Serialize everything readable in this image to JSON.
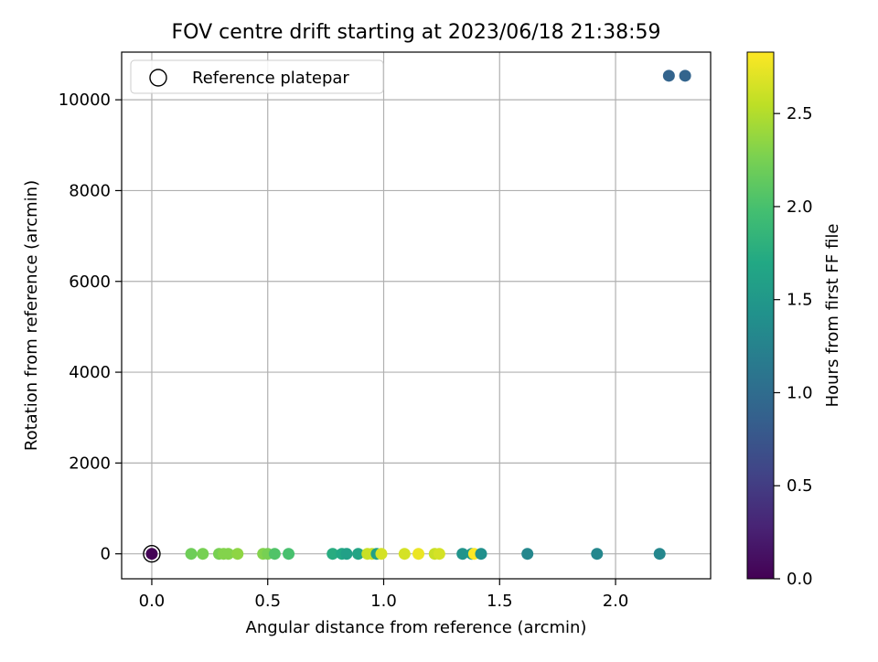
{
  "chart_data": {
    "type": "scatter",
    "title": "FOV centre drift starting at 2023/06/18 21:38:59",
    "xlabel": "Angular distance from reference (arcmin)",
    "ylabel": "Rotation from reference (arcmin)",
    "xlim": [
      -0.13,
      2.41
    ],
    "ylim": [
      -550,
      11050
    ],
    "xticks": [
      0.0,
      0.5,
      1.0,
      1.5,
      2.0
    ],
    "xtick_labels": [
      "0.0",
      "0.5",
      "1.0",
      "1.5",
      "2.0"
    ],
    "yticks": [
      0,
      2000,
      4000,
      6000,
      8000,
      10000
    ],
    "ytick_labels": [
      "0",
      "2000",
      "4000",
      "6000",
      "8000",
      "10000"
    ],
    "grid": true,
    "legend": {
      "placement": "top-left",
      "entries": [
        "Reference platepar"
      ]
    },
    "colorbar": {
      "label": "Hours from first FF file",
      "colormap": "viridis",
      "range": [
        0.0,
        2.83
      ],
      "ticks": [
        0.0,
        0.5,
        1.0,
        1.5,
        2.0,
        2.5
      ],
      "tick_labels": [
        "0.0",
        "0.5",
        "1.0",
        "1.5",
        "2.0",
        "2.5"
      ]
    },
    "reference_point": {
      "x": 0.0,
      "y": 0,
      "hours": 0.0
    },
    "points": [
      {
        "x": 0.0,
        "y": 0,
        "hours": 0.02
      },
      {
        "x": 0.17,
        "y": 0,
        "hours": 2.2
      },
      {
        "x": 0.22,
        "y": 0,
        "hours": 2.25
      },
      {
        "x": 0.29,
        "y": 0,
        "hours": 2.25
      },
      {
        "x": 0.31,
        "y": 0,
        "hours": 2.3
      },
      {
        "x": 0.33,
        "y": 0,
        "hours": 2.3
      },
      {
        "x": 0.37,
        "y": 0,
        "hours": 2.35
      },
      {
        "x": 0.48,
        "y": 0,
        "hours": 2.3
      },
      {
        "x": 0.5,
        "y": 0,
        "hours": 2.25
      },
      {
        "x": 0.53,
        "y": 0,
        "hours": 2.05
      },
      {
        "x": 0.59,
        "y": 0,
        "hours": 2.0
      },
      {
        "x": 0.78,
        "y": 0,
        "hours": 1.75
      },
      {
        "x": 0.82,
        "y": 0,
        "hours": 1.7
      },
      {
        "x": 0.84,
        "y": 0,
        "hours": 1.6
      },
      {
        "x": 0.89,
        "y": 0,
        "hours": 1.65
      },
      {
        "x": 0.93,
        "y": 0,
        "hours": 2.6
      },
      {
        "x": 0.95,
        "y": 0,
        "hours": 2.6
      },
      {
        "x": 0.97,
        "y": 0,
        "hours": 1.6
      },
      {
        "x": 0.99,
        "y": 0,
        "hours": 2.65
      },
      {
        "x": 1.09,
        "y": 0,
        "hours": 2.65
      },
      {
        "x": 1.15,
        "y": 0,
        "hours": 2.75
      },
      {
        "x": 1.22,
        "y": 0,
        "hours": 2.6
      },
      {
        "x": 1.24,
        "y": 0,
        "hours": 2.65
      },
      {
        "x": 1.34,
        "y": 0,
        "hours": 1.45
      },
      {
        "x": 1.38,
        "y": 0,
        "hours": 1.5
      },
      {
        "x": 1.39,
        "y": 0,
        "hours": 2.82
      },
      {
        "x": 1.42,
        "y": 0,
        "hours": 1.4
      },
      {
        "x": 1.62,
        "y": 0,
        "hours": 1.3
      },
      {
        "x": 1.92,
        "y": 0,
        "hours": 1.3
      },
      {
        "x": 2.19,
        "y": 0,
        "hours": 1.3
      },
      {
        "x": 2.23,
        "y": 10530,
        "hours": 0.9
      },
      {
        "x": 2.3,
        "y": 10530,
        "hours": 0.9
      }
    ]
  }
}
